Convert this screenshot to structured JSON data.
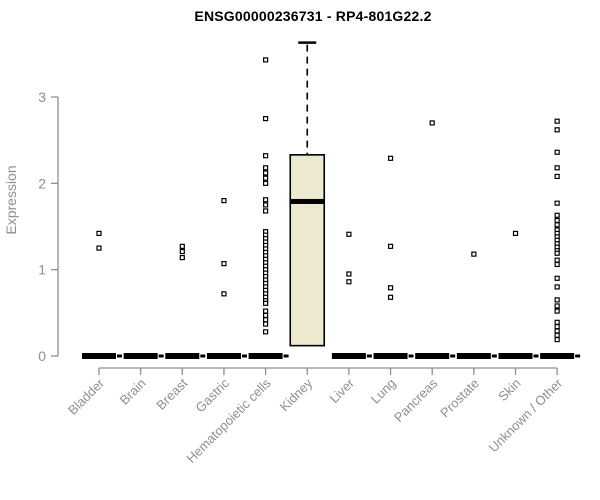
{
  "chart_data": {
    "type": "boxplot",
    "title": "ENSG00000236731 - RP4-801G22.2",
    "xlabel": "",
    "ylabel": "Expression",
    "ylim": [
      0,
      3.7
    ],
    "yticks": [
      0,
      1,
      2,
      3
    ],
    "grid": false,
    "legend": "none",
    "colors": {
      "axis": "#8f8f8f",
      "tick_label": "#8f8f8f",
      "title": "#000000",
      "box_fill": "#ede8d0",
      "box_stroke": "#000000",
      "outlier_stroke": "#000000",
      "background": "#ffffff"
    },
    "categories": [
      "Bladder",
      "Brain",
      "Breast",
      "Gastric",
      "Hematopoietic cells",
      "Kidney",
      "Liver",
      "Lung",
      "Pancreas",
      "Prostate",
      "Skin",
      "Unknown / Other"
    ],
    "series": [
      {
        "category": "Bladder",
        "q1": 0,
        "median": 0,
        "q3": 0,
        "whisker_low": 0,
        "whisker_high": 0,
        "outliers": [
          1.42,
          1.25
        ]
      },
      {
        "category": "Brain",
        "q1": 0,
        "median": 0,
        "q3": 0,
        "whisker_low": 0,
        "whisker_high": 0,
        "outliers": []
      },
      {
        "category": "Breast",
        "q1": 0,
        "median": 0,
        "q3": 0,
        "whisker_low": 0,
        "whisker_high": 0,
        "outliers": [
          1.27,
          1.21,
          1.14
        ]
      },
      {
        "category": "Gastric",
        "q1": 0,
        "median": 0,
        "q3": 0,
        "whisker_low": 0,
        "whisker_high": 0,
        "outliers": [
          1.8,
          1.07,
          0.72
        ]
      },
      {
        "category": "Hematopoietic cells",
        "q1": 0,
        "median": 0,
        "q3": 0,
        "whisker_low": 0,
        "whisker_high": 0,
        "outliers": [
          3.43,
          2.75,
          2.32,
          2.18,
          2.12,
          2.06,
          2.0,
          1.81,
          1.75,
          1.68,
          1.44,
          1.4,
          1.36,
          1.32,
          1.28,
          1.24,
          1.2,
          1.16,
          1.12,
          1.08,
          1.04,
          1.0,
          0.96,
          0.92,
          0.88,
          0.84,
          0.8,
          0.76,
          0.72,
          0.68,
          0.64,
          0.61,
          0.52,
          0.47,
          0.42,
          0.37,
          0.28
        ]
      },
      {
        "category": "Kidney",
        "q1": 0.12,
        "median": 1.79,
        "q3": 2.33,
        "whisker_low": 0.12,
        "whisker_high": 3.63,
        "outliers": []
      },
      {
        "category": "Liver",
        "q1": 0,
        "median": 0,
        "q3": 0,
        "whisker_low": 0,
        "whisker_high": 0,
        "outliers": [
          1.41,
          0.95,
          0.86
        ]
      },
      {
        "category": "Lung",
        "q1": 0,
        "median": 0,
        "q3": 0,
        "whisker_low": 0,
        "whisker_high": 0,
        "outliers": [
          2.29,
          1.27,
          0.79,
          0.68
        ]
      },
      {
        "category": "Pancreas",
        "q1": 0,
        "median": 0,
        "q3": 0,
        "whisker_low": 0,
        "whisker_high": 0,
        "outliers": [
          2.7
        ]
      },
      {
        "category": "Prostate",
        "q1": 0,
        "median": 0,
        "q3": 0,
        "whisker_low": 0,
        "whisker_high": 0,
        "outliers": [
          1.18
        ]
      },
      {
        "category": "Skin",
        "q1": 0,
        "median": 0,
        "q3": 0,
        "whisker_low": 0,
        "whisker_high": 0,
        "outliers": [
          1.42
        ]
      },
      {
        "category": "Unknown / Other",
        "q1": 0,
        "median": 0,
        "q3": 0,
        "whisker_low": 0,
        "whisker_high": 0,
        "outliers": [
          2.72,
          2.62,
          2.36,
          2.18,
          2.08,
          1.77,
          1.63,
          1.57,
          1.52,
          1.46,
          1.42,
          1.38,
          1.34,
          1.3,
          1.26,
          1.22,
          1.19,
          1.11,
          1.06,
          0.9,
          0.8,
          0.65,
          0.58,
          0.52,
          0.39,
          0.34,
          0.29,
          0.24,
          0.19
        ]
      }
    ]
  }
}
